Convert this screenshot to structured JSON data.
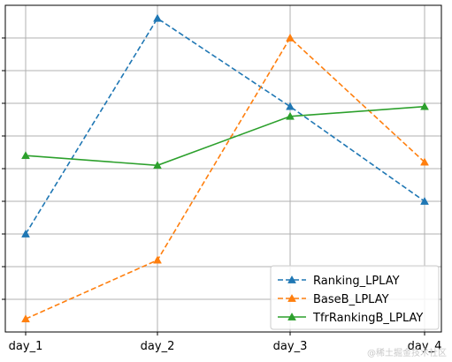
{
  "chart_data": {
    "type": "line",
    "title": "",
    "xlabel": "",
    "ylabel": "",
    "categories": [
      "day_1",
      "day_2",
      "day_3",
      "day_4"
    ],
    "ylim": [
      0,
      10
    ],
    "grid": true,
    "legend_position": "bottom-right",
    "series": [
      {
        "name": "Ranking_LPLAY",
        "values": [
          3.0,
          9.6,
          6.9,
          4.0
        ],
        "color": "#1f77b4",
        "linestyle": "dashed",
        "marker": "triangle"
      },
      {
        "name": "BaseB_LPLAY",
        "values": [
          0.4,
          2.2,
          9.0,
          5.2
        ],
        "color": "#ff7f0e",
        "linestyle": "dashed",
        "marker": "triangle"
      },
      {
        "name": "TfrRankingB_LPLAY",
        "values": [
          5.4,
          5.1,
          6.6,
          6.9
        ],
        "color": "#2ca02c",
        "linestyle": "solid",
        "marker": "triangle"
      }
    ]
  },
  "watermark": "@稀土掘金技术社区"
}
